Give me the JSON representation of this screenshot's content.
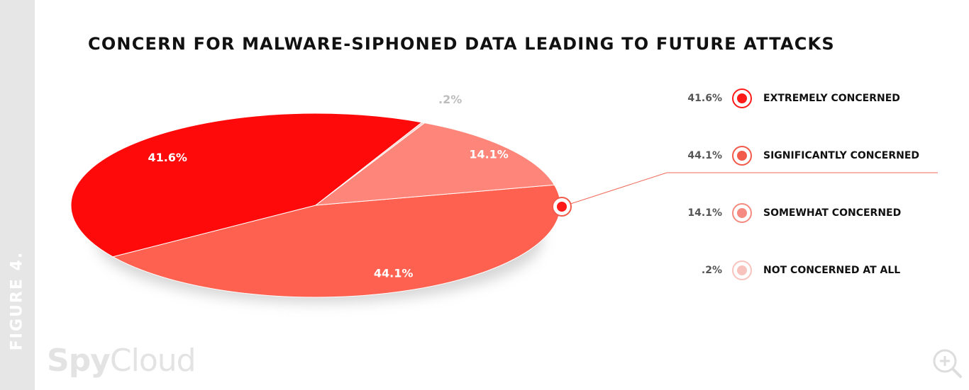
{
  "figure_label": "FIGURE 4.",
  "brand": {
    "bold": "Spy",
    "light": "Cloud"
  },
  "colors": {
    "extremely": "#ff0a0a",
    "significantly": "#ff6150",
    "somewhat": "#fd8579",
    "not_at_all": "#f9cdc8",
    "side_strip": "#e6e6e6"
  },
  "legend": [
    {
      "value": "41.6%",
      "label": "EXTREMELY CONCERNED",
      "color": "#ff1a1a",
      "ring": "#ff1a1a"
    },
    {
      "value": "44.1%",
      "label": "SIGNIFICANTLY CONCERNED",
      "color": "#f25a4a",
      "ring": "#f25a4a"
    },
    {
      "value": "14.1%",
      "label": "SOMEWHAT CONCERNED",
      "color": "#f58b80",
      "ring": "#f58b80"
    },
    {
      "value": ".2%",
      "label": "NOT CONCERNED AT ALL",
      "color": "#f8c3bd",
      "ring": "#f8c3bd"
    }
  ],
  "chart_data": {
    "type": "pie",
    "title": "CONCERN FOR MALWARE-SIPHONED DATA LEADING TO FUTURE ATTACKS",
    "categories": [
      "EXTREMELY CONCERNED",
      "SIGNIFICANTLY CONCERNED",
      "SOMEWHAT CONCERNED",
      "NOT CONCERNED AT ALL"
    ],
    "values": [
      41.6,
      44.1,
      14.1,
      0.2
    ],
    "data_labels": [
      "41.6%",
      "44.1%",
      "14.1%",
      ".2%"
    ],
    "legend_position": "right",
    "style": "3d-tilted"
  },
  "icons": {
    "zoom": "zoom-in-icon"
  }
}
